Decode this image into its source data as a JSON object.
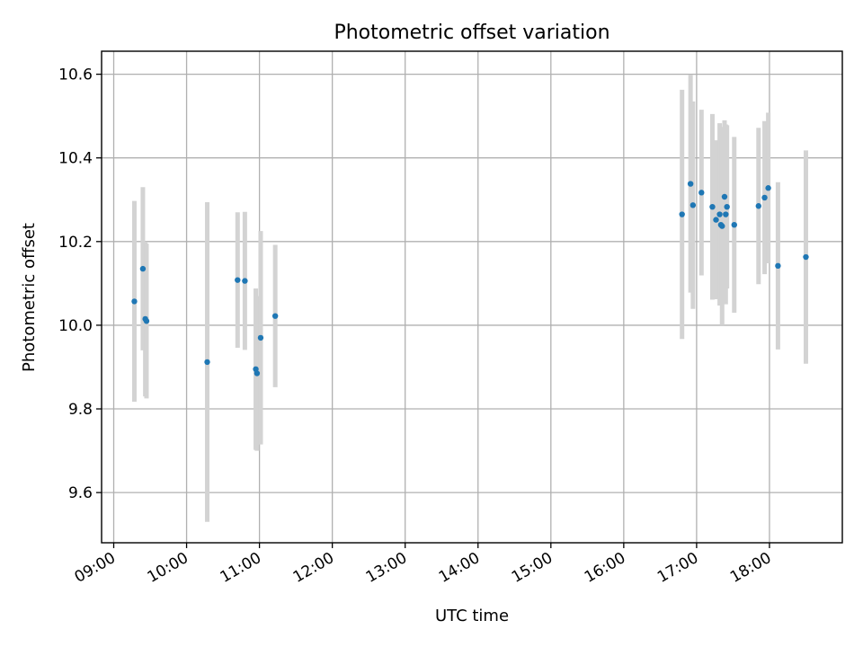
{
  "chart_data": {
    "type": "scatter",
    "title": "Photometric offset variation",
    "xlabel": "UTC time",
    "ylabel": "Photometric offset",
    "xlim": [
      "08:50",
      "19:00"
    ],
    "ylim": [
      9.48,
      10.655
    ],
    "x_ticks": [
      "09:00",
      "10:00",
      "11:00",
      "12:00",
      "13:00",
      "14:00",
      "15:00",
      "16:00",
      "17:00",
      "18:00"
    ],
    "y_ticks": [
      9.6,
      9.8,
      10.0,
      10.2,
      10.4,
      10.6
    ],
    "y_tick_labels": [
      "9.6",
      "9.8",
      "10.0",
      "10.2",
      "10.4",
      "10.6"
    ],
    "grid": true,
    "colors": {
      "marker": "#1f77b4",
      "errorbar": "#d3d3d3"
    },
    "series": [
      {
        "points": [
          {
            "x": "09:17",
            "y": 10.057,
            "yerr": 0.24
          },
          {
            "x": "09:24",
            "y": 10.135,
            "yerr": 0.195
          },
          {
            "x": "09:26",
            "y": 10.015,
            "yerr": 0.185
          },
          {
            "x": "09:27",
            "y": 10.01,
            "yerr": 0.185
          },
          {
            "x": "10:17",
            "y": 9.912,
            "yerr": 0.382
          },
          {
            "x": "10:42",
            "y": 10.108,
            "yerr": 0.162
          },
          {
            "x": "10:48",
            "y": 10.106,
            "yerr": 0.165
          },
          {
            "x": "10:57",
            "y": 9.895,
            "yerr": 0.193
          },
          {
            "x": "10:58",
            "y": 9.885,
            "yerr": 0.185
          },
          {
            "x": "11:01",
            "y": 9.97,
            "yerr": 0.255
          },
          {
            "x": "11:13",
            "y": 10.022,
            "yerr": 0.17
          },
          {
            "x": "16:48",
            "y": 10.265,
            "yerr": 0.298
          },
          {
            "x": "16:55",
            "y": 10.338,
            "yerr": 0.26
          },
          {
            "x": "16:57",
            "y": 10.287,
            "yerr": 0.248
          },
          {
            "x": "17:04",
            "y": 10.317,
            "yerr": 0.198
          },
          {
            "x": "17:13",
            "y": 10.283,
            "yerr": 0.222
          },
          {
            "x": "17:16",
            "y": 10.252,
            "yerr": 0.19
          },
          {
            "x": "17:19",
            "y": 10.265,
            "yerr": 0.218
          },
          {
            "x": "17:20",
            "y": 10.24,
            "yerr": 0.19
          },
          {
            "x": "17:21",
            "y": 10.237,
            "yerr": 0.237
          },
          {
            "x": "17:23",
            "y": 10.307,
            "yerr": 0.183
          },
          {
            "x": "17:24",
            "y": 10.265,
            "yerr": 0.215
          },
          {
            "x": "17:25",
            "y": 10.283,
            "yerr": 0.195
          },
          {
            "x": "17:31",
            "y": 10.24,
            "yerr": 0.21
          },
          {
            "x": "17:51",
            "y": 10.285,
            "yerr": 0.187
          },
          {
            "x": "17:56",
            "y": 10.305,
            "yerr": 0.183
          },
          {
            "x": "17:59",
            "y": 10.328,
            "yerr": 0.18
          },
          {
            "x": "18:07",
            "y": 10.142,
            "yerr": 0.2
          },
          {
            "x": "18:30",
            "y": 10.163,
            "yerr": 0.255
          }
        ]
      }
    ]
  }
}
